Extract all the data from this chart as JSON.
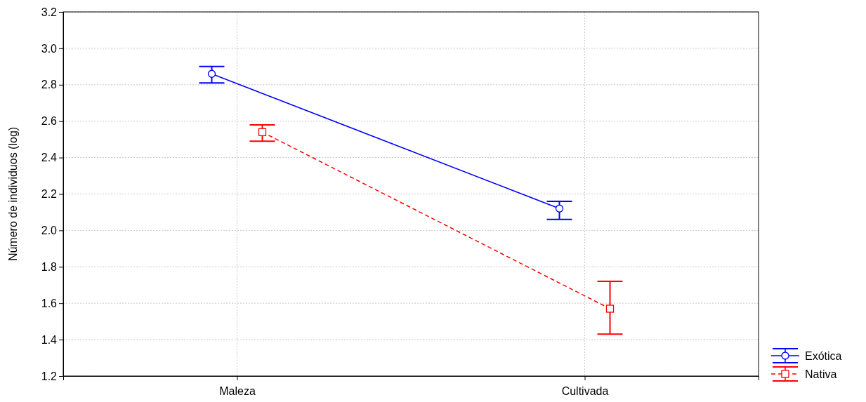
{
  "chart_data": {
    "type": "line",
    "ylabel": "Número de individuos (log)",
    "categories": [
      "Maleza",
      "Cultivada"
    ],
    "ylim": [
      1.2,
      3.2
    ],
    "yticks": [
      {
        "value": 1.2,
        "label": "1.2"
      },
      {
        "value": 1.4,
        "label": "1.4"
      },
      {
        "value": 1.6,
        "label": "1.6"
      },
      {
        "value": 1.8,
        "label": "1.8"
      },
      {
        "value": 2.0,
        "label": "2.0"
      },
      {
        "value": 2.2,
        "label": "2.2"
      },
      {
        "value": 2.4,
        "label": "2.4"
      },
      {
        "value": 2.6,
        "label": "2.6"
      },
      {
        "value": 2.8,
        "label": "2.8"
      },
      {
        "value": 3.0,
        "label": "3.0"
      },
      {
        "value": 3.2,
        "label": "3.2"
      }
    ],
    "grid": true,
    "legend": "bottom right",
    "series": [
      {
        "name": "Exótica",
        "color": "#0000ff",
        "marker": "circle",
        "line_style": "solid",
        "values": [
          2.86,
          2.12
        ],
        "errors": [
          [
            2.81,
            2.9
          ],
          [
            2.06,
            2.16
          ]
        ]
      },
      {
        "name": "Nativa",
        "color": "#ff0000",
        "marker": "square",
        "line_style": "dashed",
        "values": [
          2.54,
          1.57
        ],
        "errors": [
          [
            2.49,
            2.58
          ],
          [
            1.43,
            1.72
          ]
        ]
      }
    ]
  }
}
